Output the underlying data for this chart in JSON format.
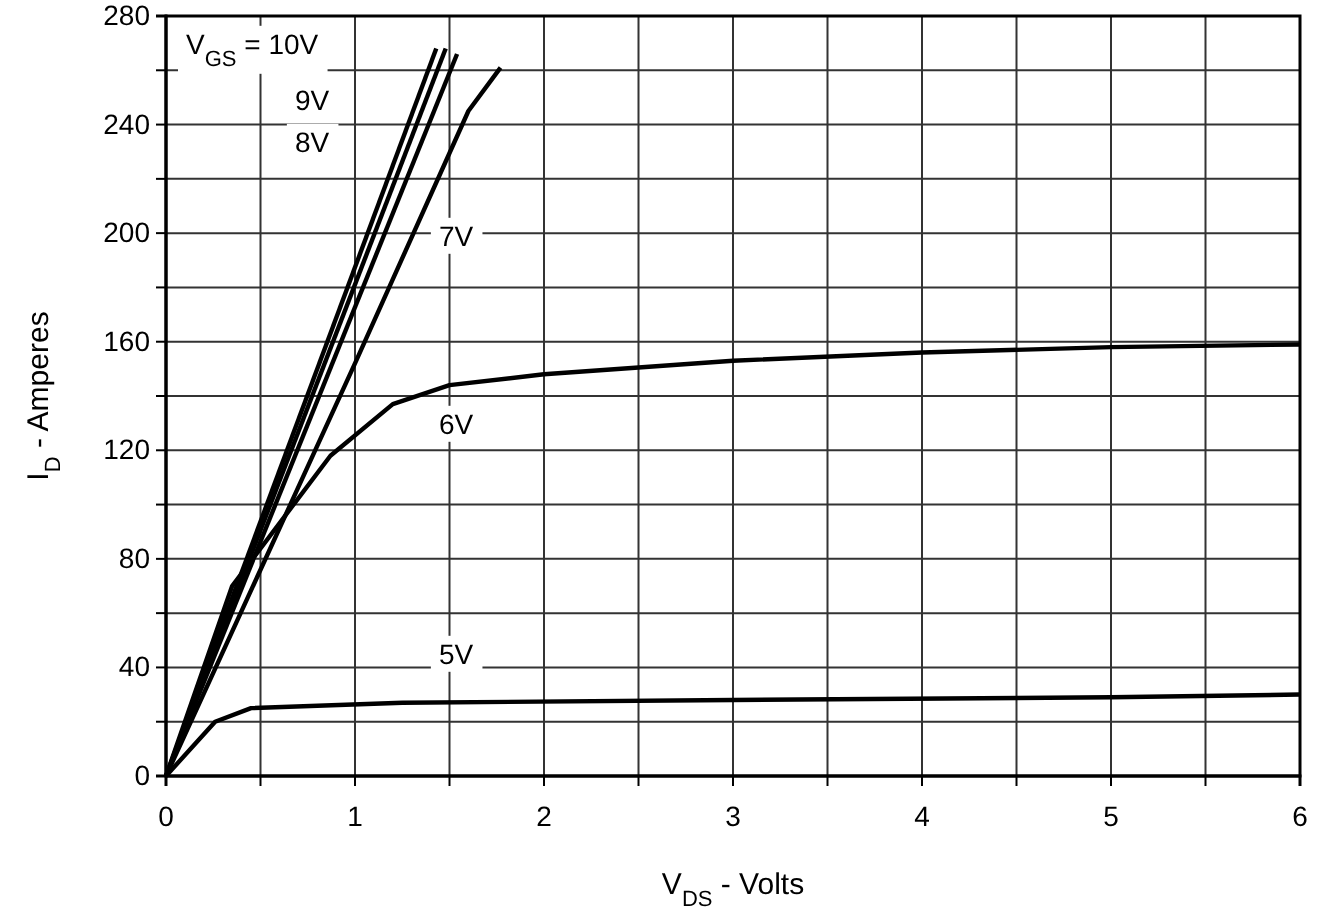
{
  "chart_data": {
    "type": "line",
    "xlabel": "V$_{DS}$ - Volts",
    "ylabel": "I$_{D}$ - Amperes",
    "xlim": [
      0,
      6
    ],
    "ylim": [
      0,
      280
    ],
    "xticks": [
      0,
      {
        "value": 0.5,
        "label": null
      },
      1,
      {
        "value": 1.5,
        "label": null
      },
      2,
      {
        "value": 2.5,
        "label": null
      },
      3,
      {
        "value": 3.5,
        "label": null
      },
      4,
      {
        "value": 4.5,
        "label": null
      },
      5,
      {
        "value": 5.5,
        "label": null
      },
      6
    ],
    "yticks": [
      0,
      {
        "value": 20,
        "label": null
      },
      40,
      {
        "value": 60,
        "label": null
      },
      80,
      {
        "value": 100,
        "label": null
      },
      120,
      {
        "value": 140,
        "label": null
      },
      160,
      {
        "value": 180,
        "label": null
      },
      200,
      {
        "value": 220,
        "label": null
      },
      240,
      {
        "value": 260,
        "label": null
      },
      280
    ],
    "grid": true,
    "marker": "none",
    "line_style": "solid",
    "series": [
      {
        "color": "#000000",
        "x": [
          0,
          1.43
        ],
        "values": [
          0,
          268
        ]
      },
      {
        "color": "#000000",
        "x": [
          0,
          1.48
        ],
        "values": [
          0,
          268
        ]
      },
      {
        "color": "#000000",
        "x": [
          0,
          1.54
        ],
        "values": [
          0,
          266
        ]
      },
      {
        "name": "7V",
        "color": "#000000",
        "x": [
          0,
          0.5,
          1,
          1.6,
          1.77
        ],
        "values": [
          0,
          76,
          152,
          245,
          261
        ]
      },
      {
        "name": "6V",
        "color": "#000000",
        "x": [
          0,
          0.35,
          0.87,
          1.2,
          1.5,
          2,
          3,
          4,
          5,
          6
        ],
        "values": [
          0,
          70,
          118,
          137,
          144,
          148,
          153,
          156,
          158,
          159
        ]
      },
      {
        "name": "5V",
        "color": "#000000",
        "x": [
          0,
          0.26,
          0.45,
          1.25,
          3,
          5,
          6
        ],
        "values": [
          0,
          20,
          25,
          27,
          28,
          29,
          30
        ]
      }
    ],
    "annotations": [
      "V$_{GS}$ = 10V",
      "9V",
      "8V"
    ]
  }
}
